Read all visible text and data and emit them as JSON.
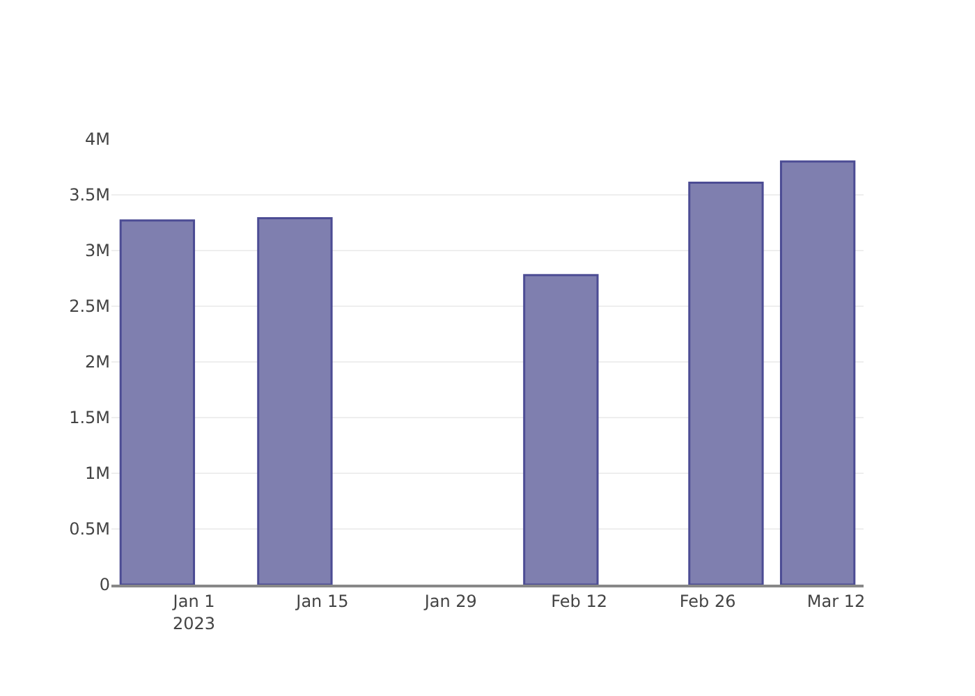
{
  "chart_data": {
    "type": "bar",
    "x": [
      "2022-12-28",
      "2023-01-12",
      "2023-02-10",
      "2023-02-28",
      "2023-03-10"
    ],
    "values": [
      3270000,
      3290000,
      2780000,
      3610000,
      3800000
    ],
    "color": "#7f7faf",
    "xlim": [
      "2022-12-23",
      "2023-03-15"
    ],
    "xticks": [
      {
        "value": "2023-01-01",
        "label": "Jan 1\n2023"
      },
      {
        "value": "2023-01-15",
        "label": "Jan 15"
      },
      {
        "value": "2023-01-29",
        "label": "Jan 29"
      },
      {
        "value": "2023-02-12",
        "label": "Feb 12"
      },
      {
        "value": "2023-02-26",
        "label": "Feb 26"
      },
      {
        "value": "2023-03-12",
        "label": "Mar 12"
      }
    ],
    "ylim": [
      0,
      4000000
    ],
    "yticks": [
      0,
      {
        "value": 500000,
        "label": "0.5M"
      },
      {
        "value": 1000000,
        "label": "1M"
      },
      {
        "value": 1500000,
        "label": "1.5M"
      },
      {
        "value": 2000000,
        "label": "2M"
      },
      {
        "value": 2500000,
        "label": "2.5M"
      },
      {
        "value": 3000000,
        "label": "3M"
      },
      {
        "value": 3500000,
        "label": "3.5M"
      },
      {
        "value": 4000000,
        "label": "4M"
      }
    ],
    "grid": "y",
    "legend": false
  }
}
